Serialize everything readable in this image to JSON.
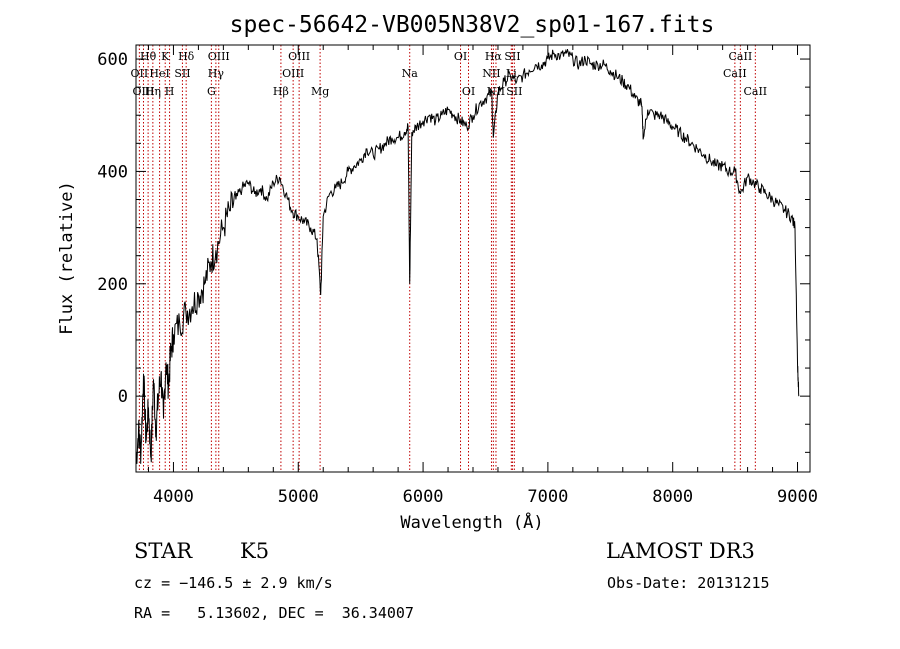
{
  "chart_data": {
    "type": "line",
    "title": "spec-56642-VB005N38V2_sp01-167.fits",
    "xlabel": "Wavelength (Å)",
    "ylabel": "Flux (relative)",
    "xlim": [
      3700,
      9100
    ],
    "ylim": [
      -135,
      625
    ],
    "xticks": [
      4000,
      5000,
      6000,
      7000,
      8000,
      9000
    ],
    "yticks": [
      0,
      200,
      400,
      600
    ],
    "grid": false,
    "legend": "none",
    "series_color": "#000000",
    "line_marker_color": "#c00000",
    "spectrum": {
      "x": [
        3700,
        3720,
        3740,
        3760,
        3780,
        3800,
        3820,
        3840,
        3860,
        3880,
        3900,
        3920,
        3940,
        3960,
        3980,
        4000,
        4050,
        4100,
        4150,
        4200,
        4250,
        4300,
        4340,
        4400,
        4450,
        4500,
        4550,
        4600,
        4650,
        4700,
        4750,
        4800,
        4850,
        4900,
        4950,
        5000,
        5050,
        5100,
        5150,
        5180,
        5200,
        5250,
        5300,
        5350,
        5400,
        5450,
        5500,
        5550,
        5600,
        5650,
        5700,
        5750,
        5800,
        5850,
        5880,
        5893,
        5910,
        5950,
        6000,
        6050,
        6100,
        6150,
        6200,
        6250,
        6300,
        6350,
        6400,
        6450,
        6500,
        6550,
        6563,
        6600,
        6650,
        6700,
        6750,
        6800,
        6850,
        6900,
        6950,
        7000,
        7050,
        7100,
        7150,
        7200,
        7250,
        7300,
        7350,
        7400,
        7450,
        7500,
        7550,
        7600,
        7650,
        7700,
        7750,
        7765,
        7800,
        7850,
        7900,
        7950,
        8000,
        8050,
        8100,
        8150,
        8200,
        8250,
        8300,
        8350,
        8400,
        8450,
        8500,
        8542,
        8600,
        8650,
        8700,
        8750,
        8800,
        8850,
        8900,
        8950,
        8980,
        9000,
        9010
      ],
      "y": [
        -120,
        -60,
        -100,
        40,
        -80,
        -20,
        -110,
        30,
        -60,
        0,
        40,
        -40,
        60,
        20,
        80,
        110,
        130,
        150,
        160,
        180,
        200,
        240,
        260,
        300,
        330,
        350,
        370,
        380,
        360,
        370,
        350,
        380,
        390,
        360,
        330,
        320,
        310,
        300,
        280,
        180,
        320,
        360,
        370,
        380,
        400,
        410,
        420,
        440,
        430,
        440,
        450,
        460,
        460,
        470,
        480,
        200,
        470,
        480,
        490,
        500,
        490,
        500,
        510,
        500,
        490,
        480,
        500,
        520,
        530,
        540,
        460,
        540,
        560,
        570,
        560,
        570,
        580,
        590,
        590,
        600,
        610,
        605,
        610,
        600,
        590,
        600,
        590,
        590,
        590,
        580,
        570,
        560,
        550,
        530,
        520,
        460,
        510,
        500,
        500,
        490,
        480,
        470,
        460,
        450,
        440,
        430,
        420,
        410,
        410,
        400,
        400,
        360,
        390,
        380,
        370,
        360,
        350,
        340,
        330,
        320,
        300,
        60,
        0
      ]
    },
    "lines": [
      {
        "label": "Hθ",
        "x": 3797,
        "row": 0
      },
      {
        "label": "OII",
        "x": 3727,
        "row": 1
      },
      {
        "label": "OIII",
        "x": 3760,
        "row": 2
      },
      {
        "label": "Hη",
        "x": 3835,
        "row": 2
      },
      {
        "label": "K",
        "x": 3934,
        "row": 0
      },
      {
        "label": "HeI",
        "x": 3889,
        "row": 1
      },
      {
        "label": "H",
        "x": 3969,
        "row": 2
      },
      {
        "label": "Hδ",
        "x": 4102,
        "row": 0
      },
      {
        "label": "SII",
        "x": 4072,
        "row": 1
      },
      {
        "label": "OIII",
        "x": 4363,
        "row": 0
      },
      {
        "label": "Hγ",
        "x": 4340,
        "row": 1
      },
      {
        "label": "G",
        "x": 4304,
        "row": 2
      },
      {
        "label": "OIII",
        "x": 5007,
        "row": 0
      },
      {
        "label": "OIII",
        "x": 4959,
        "row": 1
      },
      {
        "label": "Hβ",
        "x": 4861,
        "row": 2
      },
      {
        "label": "Mg",
        "x": 5175,
        "row": 2
      },
      {
        "label": "Na",
        "x": 5893,
        "row": 1
      },
      {
        "label": "OI",
        "x": 6300,
        "row": 0
      },
      {
        "label": "OI",
        "x": 6364,
        "row": 2
      },
      {
        "label": "Hα",
        "x": 6563,
        "row": 0
      },
      {
        "label": "SII",
        "x": 6716,
        "row": 0
      },
      {
        "label": "NII",
        "x": 6548,
        "row": 1
      },
      {
        "label": "Li",
        "x": 6707,
        "row": 1
      },
      {
        "label": "NII",
        "x": 6584,
        "row": 2
      },
      {
        "label": "SII",
        "x": 6731,
        "row": 2
      },
      {
        "label": "CaII",
        "x": 8542,
        "row": 0
      },
      {
        "label": "CaII",
        "x": 8498,
        "row": 1
      },
      {
        "label": "CaII",
        "x": 8662,
        "row": 2
      }
    ]
  },
  "info": {
    "class": "STAR",
    "subclass": "K5",
    "survey": "LAMOST DR3",
    "cz": "cz = −146.5 ± 2.9 km/s",
    "obs_date": "Obs-Date: 20131215",
    "radec": "RA =   5.13602, DEC =  36.34007"
  }
}
